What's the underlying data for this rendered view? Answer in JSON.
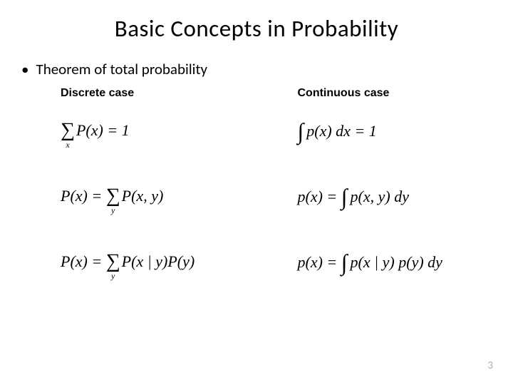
{
  "title": "Basic Concepts in Probability",
  "bullet": {
    "marker": "•",
    "text": "Theorem of total probability"
  },
  "left": {
    "heading": "Discrete case",
    "equations": [
      {
        "sigmaSub": "x",
        "body": "P(x) = 1"
      },
      {
        "lhs": "P(x) = ",
        "sigmaSub": "y",
        "body": "P(x, y)"
      },
      {
        "lhs": "P(x) = ",
        "sigmaSub": "y",
        "body": "P(x | y)P(y)"
      }
    ]
  },
  "right": {
    "heading": "Continuous case",
    "equations": [
      {
        "body": "p(x) dx = 1"
      },
      {
        "lhs": "p(x) = ",
        "body": "p(x, y) dy"
      },
      {
        "lhs": "p(x) = ",
        "body": "p(x | y) p(y) dy"
      }
    ]
  },
  "pageNumber": "3",
  "colors": {
    "background": "#ffffff",
    "text": "#000000",
    "pageNum": "#b0b0b0"
  }
}
